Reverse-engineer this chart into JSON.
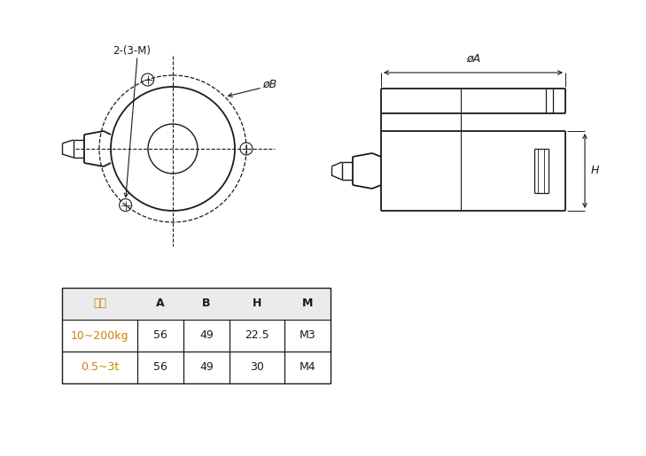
{
  "bg_color": "#ffffff",
  "line_color": "#1a1a1a",
  "orange_color": "#c8820a",
  "table_headers": [
    "量程",
    "A",
    "B",
    "H",
    "M"
  ],
  "table_row1": [
    "10~200kg",
    "56",
    "49",
    "22.5",
    "M3"
  ],
  "table_row2": [
    "0.5~3t",
    "56",
    "49",
    "30",
    "M4"
  ],
  "label_phiB": "øB",
  "label_phiA": "øA",
  "label_H": "H",
  "label_2_3M": "2-(3-M)"
}
